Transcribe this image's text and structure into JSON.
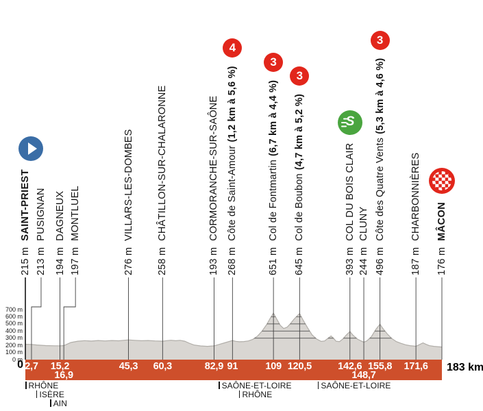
{
  "colors": {
    "band": "#CE4F2B",
    "category_red": "#E2261B",
    "sprint_green": "#4AA53F",
    "start_blue": "#3A6DA6",
    "profile_fill": "#D9D6D2",
    "profile_edge": "#B0ADA8",
    "line_dark": "#3F3F3F"
  },
  "axis": {
    "origin_label": "0",
    "total_label": "183 km",
    "y_ticks": [
      "700 m",
      "600 m",
      "500 m",
      "400 m",
      "300 m",
      "200 m",
      "100 m",
      "0 m"
    ]
  },
  "icons": {
    "sprint_letter": "S"
  },
  "departments": [
    {
      "name": "RHÔNE",
      "km": 0,
      "row": 1
    },
    {
      "name": "ISÈRE",
      "km": 4.8,
      "row": 2
    },
    {
      "name": "AIN",
      "km": 10.9,
      "row": 3
    },
    {
      "name": "SAÔNE-ET-LOIRE",
      "km": 84.9,
      "row": 1
    },
    {
      "name": "RHÔNE",
      "km": 93.9,
      "row": 2
    },
    {
      "name": "SAÔNE-ET-LOIRE",
      "km": 128.5,
      "row": 1
    }
  ],
  "chart_data": {
    "type": "area",
    "title": "Stage elevation profile Saint-Priest to Mâcon",
    "xlabel": "km",
    "ylabel": "m",
    "xlim": [
      0,
      183
    ],
    "ylim": [
      0,
      700
    ],
    "total_distance_km": 183,
    "gridlines_m": [
      300,
      400,
      500,
      600
    ],
    "waypoints": [
      {
        "km": 0,
        "km_label": null,
        "row": 1,
        "elevation": "215 m",
        "name": "SAINT-PRIEST",
        "type": "start",
        "emphasis": true
      },
      {
        "km": 2.7,
        "km_label": "2,7",
        "row": 1,
        "elevation": "213 m",
        "name": "PUSIGNAN",
        "type": "town",
        "label_offset_x": 14
      },
      {
        "km": 15.2,
        "km_label": "15,2",
        "row": 1,
        "elevation": "194 m",
        "name": "DAGNEUX",
        "type": "town"
      },
      {
        "km": 16.9,
        "km_label": "16,9",
        "row": 2,
        "elevation": "197 m",
        "name": "MONTLUEL",
        "type": "town",
        "label_offset_x": 17
      },
      {
        "km": 45.3,
        "km_label": "45,3",
        "row": 1,
        "elevation": "276 m",
        "name": "VILLARS-LES-DOMBES",
        "type": "town"
      },
      {
        "km": 60.3,
        "km_label": "60,3",
        "row": 1,
        "elevation": "258 m",
        "name": "CHÂTILLON-SUR-CHALARONNE",
        "type": "town"
      },
      {
        "km": 82.9,
        "km_label": "82,9",
        "row": 1,
        "elevation": "193 m",
        "name": "CORMORANCHE-SUR-SAÔNE",
        "type": "town"
      },
      {
        "km": 91,
        "km_label": "91",
        "row": 1,
        "elevation": "268 m",
        "name": "Côte de Saint-Amour",
        "gradient": "(1,2 km à 5,6 %)",
        "type": "climb",
        "category": "4"
      },
      {
        "km": 109,
        "km_label": "109",
        "row": 1,
        "elevation": "651 m",
        "name": "Col de Fontmartin",
        "gradient": "(6,7 km à 4,4 %)",
        "type": "climb",
        "category": "3"
      },
      {
        "km": 120.5,
        "km_label": "120,5",
        "row": 1,
        "elevation": "645 m",
        "name": "Col de Boubon",
        "gradient": "(4,7 km à 5,2 %)",
        "type": "climb",
        "category": "3"
      },
      {
        "km": 142.6,
        "km_label": "142,6",
        "row": 1,
        "elevation": "393 m",
        "name": "COL DU BOIS CLAIR",
        "type": "sprint"
      },
      {
        "km": 148.7,
        "km_label": "148,7",
        "row": 2,
        "elevation": "244 m",
        "name": "CLUNY",
        "type": "town"
      },
      {
        "km": 155.8,
        "km_label": "155,8",
        "row": 1,
        "elevation": "496 m",
        "name": "Côte des Quatre Vents",
        "gradient": "(5,3 km à 4,6 %)",
        "type": "climb",
        "category": "3"
      },
      {
        "km": 171.6,
        "km_label": "171,6",
        "row": 1,
        "elevation": "187 m",
        "name": "CHARBONNIÈRES",
        "type": "town"
      },
      {
        "km": 183,
        "km_label": null,
        "row": 1,
        "elevation": "176 m",
        "name": "MÂCON",
        "type": "finish",
        "emphasis": true
      }
    ],
    "profile_points_km_m": [
      [
        0,
        215
      ],
      [
        2.7,
        213
      ],
      [
        5,
        205
      ],
      [
        9,
        197
      ],
      [
        13,
        194
      ],
      [
        15.2,
        194
      ],
      [
        16.9,
        197
      ],
      [
        18,
        212
      ],
      [
        20,
        240
      ],
      [
        23,
        258
      ],
      [
        26,
        266
      ],
      [
        29,
        260
      ],
      [
        32,
        268
      ],
      [
        35,
        262
      ],
      [
        38,
        268
      ],
      [
        41,
        264
      ],
      [
        45.3,
        276
      ],
      [
        48,
        270
      ],
      [
        51,
        265
      ],
      [
        54,
        268
      ],
      [
        57,
        262
      ],
      [
        60.3,
        258
      ],
      [
        62,
        266
      ],
      [
        64,
        271
      ],
      [
        66,
        265
      ],
      [
        68,
        270
      ],
      [
        70,
        258
      ],
      [
        72,
        230
      ],
      [
        74,
        205
      ],
      [
        77,
        192
      ],
      [
        80,
        186
      ],
      [
        82.9,
        193
      ],
      [
        85,
        212
      ],
      [
        88,
        240
      ],
      [
        91,
        268
      ],
      [
        92.5,
        256
      ],
      [
        94,
        250
      ],
      [
        96,
        253
      ],
      [
        98,
        262
      ],
      [
        100,
        285
      ],
      [
        102,
        330
      ],
      [
        104,
        400
      ],
      [
        106,
        490
      ],
      [
        107.5,
        575
      ],
      [
        109,
        651
      ],
      [
        110.5,
        565
      ],
      [
        112,
        480
      ],
      [
        113.5,
        435
      ],
      [
        115,
        455
      ],
      [
        116.5,
        505
      ],
      [
        118,
        565
      ],
      [
        119.5,
        615
      ],
      [
        120.5,
        645
      ],
      [
        122,
        555
      ],
      [
        124,
        445
      ],
      [
        126,
        345
      ],
      [
        128,
        288
      ],
      [
        130,
        255
      ],
      [
        131.5,
        262
      ],
      [
        133,
        300
      ],
      [
        134.3,
        332
      ],
      [
        135.5,
        295
      ],
      [
        136.5,
        258
      ],
      [
        138,
        252
      ],
      [
        139.5,
        290
      ],
      [
        141,
        345
      ],
      [
        142.6,
        393
      ],
      [
        144,
        340
      ],
      [
        146,
        285
      ],
      [
        148.7,
        244
      ],
      [
        150,
        262
      ],
      [
        152,
        320
      ],
      [
        154,
        425
      ],
      [
        155.8,
        496
      ],
      [
        157,
        440
      ],
      [
        159,
        360
      ],
      [
        161,
        295
      ],
      [
        163,
        252
      ],
      [
        165,
        228
      ],
      [
        167,
        208
      ],
      [
        169,
        196
      ],
      [
        171.6,
        187
      ],
      [
        173,
        208
      ],
      [
        174.7,
        235
      ],
      [
        176,
        215
      ],
      [
        177.5,
        196
      ],
      [
        179.5,
        186
      ],
      [
        183,
        176
      ]
    ]
  }
}
